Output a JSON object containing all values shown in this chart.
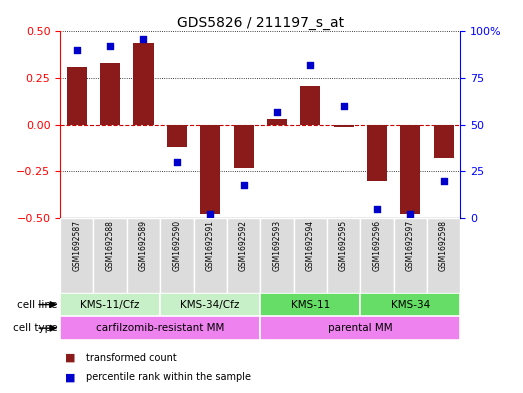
{
  "title": "GDS5826 / 211197_s_at",
  "samples": [
    "GSM1692587",
    "GSM1692588",
    "GSM1692589",
    "GSM1692590",
    "GSM1692591",
    "GSM1692592",
    "GSM1692593",
    "GSM1692594",
    "GSM1692595",
    "GSM1692596",
    "GSM1692597",
    "GSM1692598"
  ],
  "transformed_count": [
    0.31,
    0.33,
    0.44,
    -0.12,
    -0.48,
    -0.23,
    0.03,
    0.21,
    -0.01,
    -0.3,
    -0.48,
    -0.18
  ],
  "percentile_rank": [
    90,
    92,
    96,
    30,
    2,
    18,
    57,
    82,
    60,
    5,
    2,
    20
  ],
  "ylim_left": [
    -0.5,
    0.5
  ],
  "ylim_right": [
    0,
    100
  ],
  "yticks_left": [
    -0.5,
    -0.25,
    0,
    0.25,
    0.5
  ],
  "yticks_right": [
    0,
    25,
    50,
    75,
    100
  ],
  "bar_color": "#8B1A1A",
  "dot_color": "#0000CC",
  "zero_line_color": "#CC0000",
  "grid_color": "#000000",
  "cell_line_groups": [
    {
      "label": "KMS-11/Cfz",
      "start": 0,
      "end": 3
    },
    {
      "label": "KMS-34/Cfz",
      "start": 3,
      "end": 6
    },
    {
      "label": "KMS-11",
      "start": 6,
      "end": 9
    },
    {
      "label": "KMS-34",
      "start": 9,
      "end": 12
    }
  ],
  "cell_line_colors": [
    "#C8F0C8",
    "#C8F0C8",
    "#66DD66",
    "#66DD66"
  ],
  "cell_type_groups": [
    {
      "label": "carfilzomib-resistant MM",
      "start": 0,
      "end": 6
    },
    {
      "label": "parental MM",
      "start": 6,
      "end": 12
    }
  ],
  "cell_type_color": "#EE82EE",
  "legend_bar_label": "transformed count",
  "legend_dot_label": "percentile rank within the sample",
  "cell_line_label": "cell line",
  "cell_type_label": "cell type",
  "bg_color": "#DCDCDC"
}
